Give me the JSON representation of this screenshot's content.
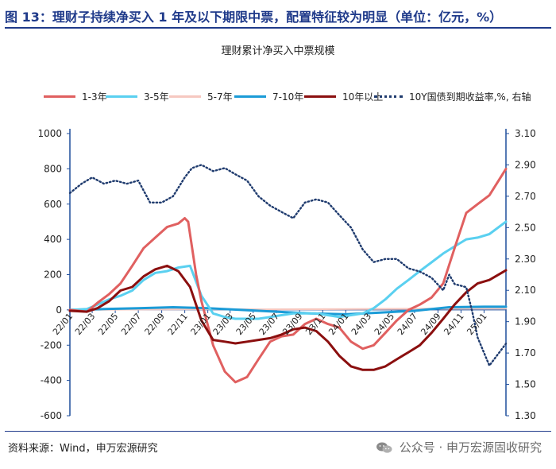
{
  "header": {
    "figure_title": "图 13：理财子持续净买入 1 年及以下期限中票，配置特征较为明显（单位：亿元，%）"
  },
  "footer": {
    "source": "资料来源：Wind，申万宏源研究",
    "watermark": "公众号 · 申万宏源固收研究",
    "watermark_icon": "wechat-icon"
  },
  "chart_data": {
    "type": "line",
    "title": "理财累计净买入中票规模",
    "legend_position": "top",
    "x_ticks": [
      "22/01",
      "22/03",
      "22/05",
      "22/07",
      "22/09",
      "22/11",
      "23/01",
      "23/03",
      "23/05",
      "23/07",
      "23/09",
      "23/11",
      "24/01",
      "24/03",
      "24/05",
      "24/07",
      "24/09",
      "24/11",
      "25/01"
    ],
    "x_range": [
      "2022-01-01",
      "2025-02-28"
    ],
    "y_left": {
      "min": -600,
      "max": 1000,
      "ticks": [
        -600,
        -400,
        -200,
        0,
        200,
        400,
        600,
        800,
        1000
      ]
    },
    "y_right": {
      "min": 1.3,
      "max": 3.1,
      "ticks": [
        "1.30",
        "1.50",
        "1.70",
        "1.90",
        "2.10",
        "2.30",
        "2.50",
        "2.70",
        "2.90",
        "3.10"
      ],
      "label_side": "right"
    },
    "series": [
      {
        "name": "1-3年",
        "color": "#e06060",
        "axis": "left",
        "style": "solid",
        "x": [
          "2022-01-01",
          "2022-02-15",
          "2022-03-15",
          "2022-04-15",
          "2022-05-15",
          "2022-06-15",
          "2022-07-15",
          "2022-08-15",
          "2022-09-15",
          "2022-10-15",
          "2022-11-01",
          "2022-11-10",
          "2022-12-01",
          "2022-12-15",
          "2023-01-15",
          "2023-02-15",
          "2023-03-15",
          "2023-04-15",
          "2023-05-15",
          "2023-06-15",
          "2023-07-15",
          "2023-08-15",
          "2023-09-15",
          "2023-10-15",
          "2023-11-15",
          "2023-12-15",
          "2024-01-15",
          "2024-02-15",
          "2024-03-15",
          "2024-04-15",
          "2024-05-15",
          "2024-06-15",
          "2024-07-15",
          "2024-08-15",
          "2024-09-15",
          "2024-10-15",
          "2024-11-15",
          "2024-12-15",
          "2025-01-15",
          "2025-02-28"
        ],
        "y": [
          0,
          -10,
          40,
          90,
          150,
          250,
          350,
          410,
          470,
          490,
          520,
          500,
          200,
          50,
          -200,
          -350,
          -410,
          -380,
          -280,
          -180,
          -150,
          -140,
          -80,
          -50,
          -80,
          -100,
          -180,
          -220,
          -200,
          -130,
          -60,
          0,
          30,
          70,
          150,
          350,
          550,
          600,
          650,
          800
        ]
      },
      {
        "name": "3-5年",
        "color": "#5ad0f0",
        "axis": "left",
        "style": "solid",
        "x": [
          "2022-01-01",
          "2022-02-15",
          "2022-03-15",
          "2022-04-15",
          "2022-05-15",
          "2022-06-15",
          "2022-07-15",
          "2022-08-15",
          "2022-09-15",
          "2022-10-15",
          "2022-11-15",
          "2022-12-15",
          "2023-01-15",
          "2023-02-15",
          "2023-03-15",
          "2023-04-15",
          "2023-05-15",
          "2023-06-15",
          "2023-07-15",
          "2023-08-15",
          "2023-09-15",
          "2023-10-15",
          "2023-11-15",
          "2023-12-15",
          "2024-01-15",
          "2024-02-15",
          "2024-03-15",
          "2024-04-15",
          "2024-05-15",
          "2024-06-15",
          "2024-07-15",
          "2024-08-15",
          "2024-09-15",
          "2024-10-15",
          "2024-11-15",
          "2024-12-15",
          "2025-01-15",
          "2025-02-28"
        ],
        "y": [
          0,
          5,
          30,
          60,
          80,
          110,
          170,
          210,
          220,
          240,
          250,
          80,
          -20,
          -40,
          -50,
          -50,
          -50,
          -40,
          -30,
          -20,
          -20,
          -20,
          -30,
          -40,
          -30,
          -20,
          10,
          60,
          120,
          170,
          220,
          270,
          320,
          360,
          400,
          410,
          430,
          500
        ]
      },
      {
        "name": "5-7年",
        "color": "#f6c8c0",
        "axis": "left",
        "style": "solid",
        "x": [
          "2022-01-01",
          "2022-06-01",
          "2023-01-01",
          "2023-06-01",
          "2024-01-01",
          "2024-06-01",
          "2025-02-28"
        ],
        "y": [
          0,
          2,
          4,
          3,
          5,
          6,
          8
        ]
      },
      {
        "name": "7-10年",
        "color": "#1b9bd7",
        "axis": "left",
        "style": "solid",
        "x": [
          "2022-01-01",
          "2022-04-01",
          "2022-07-01",
          "2022-10-01",
          "2023-01-01",
          "2023-04-01",
          "2023-07-01",
          "2023-10-01",
          "2024-01-01",
          "2024-04-01",
          "2024-07-01",
          "2024-10-01",
          "2025-01-01",
          "2025-02-28"
        ],
        "y": [
          0,
          5,
          10,
          15,
          10,
          0,
          -10,
          -20,
          -25,
          -15,
          -5,
          15,
          18,
          18
        ]
      },
      {
        "name": "10年以上",
        "color": "#8b0f0f",
        "axis": "left",
        "style": "solid",
        "x": [
          "2022-01-01",
          "2022-02-15",
          "2022-03-15",
          "2022-04-15",
          "2022-05-15",
          "2022-06-15",
          "2022-07-15",
          "2022-08-15",
          "2022-09-15",
          "2022-10-15",
          "2022-11-15",
          "2022-12-15",
          "2023-01-15",
          "2023-02-15",
          "2023-03-15",
          "2023-04-15",
          "2023-05-15",
          "2023-06-15",
          "2023-07-15",
          "2023-08-15",
          "2023-09-15",
          "2023-10-15",
          "2023-11-15",
          "2023-12-15",
          "2024-01-15",
          "2024-02-15",
          "2024-03-15",
          "2024-04-15",
          "2024-05-15",
          "2024-06-15",
          "2024-07-15",
          "2024-08-15",
          "2024-09-15",
          "2024-10-15",
          "2024-11-15",
          "2024-12-15",
          "2025-01-15",
          "2025-02-28"
        ],
        "y": [
          -5,
          -10,
          10,
          50,
          110,
          130,
          190,
          230,
          250,
          220,
          130,
          -60,
          -170,
          -180,
          -190,
          -180,
          -170,
          -160,
          -140,
          -110,
          -100,
          -120,
          -180,
          -260,
          -320,
          -340,
          -340,
          -320,
          -280,
          -240,
          -200,
          -130,
          -50,
          30,
          100,
          150,
          170,
          225
        ]
      },
      {
        "name": "10Y国债到期收益率,%, 右轴",
        "color": "#1f3b6e",
        "axis": "right",
        "style": "dotted",
        "x": [
          "2022-01-01",
          "2022-02-01",
          "2022-03-01",
          "2022-04-01",
          "2022-05-01",
          "2022-06-01",
          "2022-07-01",
          "2022-08-01",
          "2022-09-01",
          "2022-10-01",
          "2022-11-01",
          "2022-11-20",
          "2022-12-15",
          "2023-01-15",
          "2023-02-15",
          "2023-03-15",
          "2023-04-15",
          "2023-05-15",
          "2023-06-15",
          "2023-07-15",
          "2023-08-15",
          "2023-09-15",
          "2023-10-15",
          "2023-11-15",
          "2023-12-15",
          "2024-01-15",
          "2024-02-15",
          "2024-03-15",
          "2024-04-15",
          "2024-05-15",
          "2024-06-15",
          "2024-07-15",
          "2024-08-15",
          "2024-09-15",
          "2024-10-01",
          "2024-10-15",
          "2024-11-15",
          "2024-12-01",
          "2024-12-15",
          "2025-01-15",
          "2025-02-28"
        ],
        "y": [
          2.72,
          2.78,
          2.82,
          2.78,
          2.8,
          2.78,
          2.8,
          2.66,
          2.66,
          2.7,
          2.82,
          2.88,
          2.9,
          2.86,
          2.88,
          2.84,
          2.8,
          2.7,
          2.64,
          2.6,
          2.56,
          2.66,
          2.68,
          2.66,
          2.58,
          2.5,
          2.36,
          2.28,
          2.3,
          2.3,
          2.24,
          2.22,
          2.18,
          2.1,
          2.2,
          2.14,
          2.12,
          1.96,
          1.8,
          1.62,
          1.76
        ]
      }
    ]
  }
}
